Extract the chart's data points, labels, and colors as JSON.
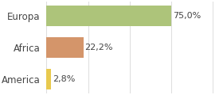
{
  "categories": [
    "America",
    "Africa",
    "Europa"
  ],
  "values": [
    2.8,
    22.2,
    75.0
  ],
  "labels": [
    "2,8%",
    "22,2%",
    "75,0%"
  ],
  "bar_colors": [
    "#e8c94e",
    "#d4956a",
    "#adc47a"
  ],
  "background_color": "#ffffff",
  "xlim": [
    0,
    105
  ],
  "bar_height": 0.65,
  "label_fontsize": 8,
  "tick_fontsize": 8.5,
  "grid_color": "#dddddd",
  "text_color": "#444444"
}
